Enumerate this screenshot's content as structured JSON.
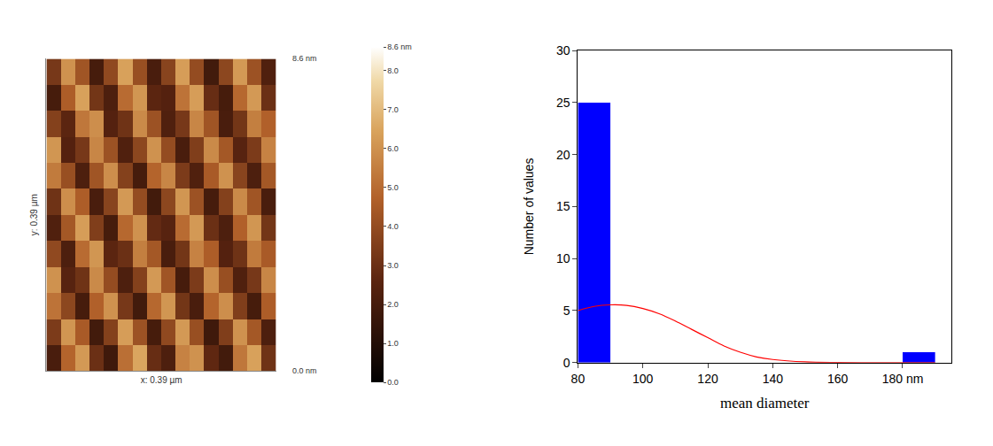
{
  "chart_data": [
    {
      "type": "heatmap",
      "x_label": "x: 0.39 µm",
      "y_label": "y: 0.39 µm",
      "annotations": [
        "8.6 nm",
        "0.0 nm"
      ],
      "tick_labels": false,
      "cells": [
        [
          2.1,
          4.8,
          6.2,
          3.0,
          1.8,
          5.1,
          6.5,
          2.9,
          2.2,
          5.6,
          6.0,
          2.7,
          1.9,
          5.3,
          6.4,
          3.1
        ],
        [
          3.4,
          6.1,
          4.5,
          1.9,
          3.6,
          6.3,
          4.2,
          2.0,
          3.9,
          6.2,
          4.1,
          1.8,
          3.5,
          6.0,
          4.4,
          2.2
        ],
        [
          5.2,
          3.8,
          2.0,
          4.7,
          6.0,
          3.3,
          1.9,
          4.9,
          6.1,
          3.2,
          2.1,
          4.8,
          5.9,
          3.5,
          2.0,
          4.6
        ],
        [
          6.0,
          2.5,
          3.1,
          5.8,
          4.0,
          2.2,
          3.6,
          6.2,
          4.3,
          2.0,
          3.4,
          5.9,
          4.1,
          2.3,
          3.3,
          5.7
        ],
        [
          3.9,
          2.2,
          5.0,
          6.1,
          2.6,
          3.0,
          5.5,
          4.4,
          2.1,
          3.2,
          5.6,
          4.6,
          2.4,
          3.1,
          5.4,
          4.5
        ],
        [
          2.3,
          4.4,
          6.3,
          3.5,
          2.0,
          4.9,
          6.0,
          2.8,
          2.5,
          5.0,
          6.2,
          3.0,
          2.2,
          4.7,
          6.1,
          3.2
        ],
        [
          3.1,
          5.9,
          4.6,
          2.1,
          3.7,
          6.2,
          4.0,
          1.9,
          3.8,
          6.1,
          4.2,
          2.0,
          3.6,
          5.8,
          4.3,
          2.1
        ],
        [
          5.4,
          4.1,
          2.2,
          4.3,
          5.9,
          3.6,
          2.0,
          4.8,
          5.7,
          3.4,
          2.3,
          4.5,
          6.0,
          3.7,
          2.2,
          4.4
        ],
        [
          6.1,
          2.4,
          3.3,
          5.7,
          4.2,
          2.3,
          3.8,
          6.0,
          4.0,
          2.1,
          3.5,
          5.8,
          4.4,
          2.5,
          3.4,
          5.6
        ],
        [
          3.6,
          2.6,
          5.3,
          5.9,
          2.4,
          3.1,
          5.8,
          4.2,
          2.3,
          3.3,
          5.7,
          4.3,
          2.1,
          3.2,
          5.5,
          4.7
        ],
        [
          2.0,
          4.6,
          6.4,
          3.2,
          2.2,
          5.0,
          6.1,
          2.6,
          2.4,
          5.2,
          6.3,
          2.9,
          2.0,
          4.9,
          6.2,
          3.0
        ],
        [
          3.3,
          6.0,
          4.3,
          2.0,
          3.9,
          6.4,
          4.1,
          2.1,
          3.7,
          6.3,
          4.0,
          1.9,
          3.8,
          6.2,
          4.2,
          2.3
        ]
      ],
      "colorbar": {
        "range": [
          0,
          8.6
        ],
        "ticks": [
          {
            "value": 0,
            "label": "0.0"
          },
          {
            "value": 1,
            "label": "1.0"
          },
          {
            "value": 2,
            "label": "2.0"
          },
          {
            "value": 3,
            "label": "3.0"
          },
          {
            "value": 4,
            "label": "4.0"
          },
          {
            "value": 5,
            "label": "5.0"
          },
          {
            "value": 6,
            "label": "6.0"
          },
          {
            "value": 7,
            "label": "7.0"
          },
          {
            "value": 8,
            "label": "8.0"
          },
          {
            "value": 8.6,
            "label": "8.6 nm"
          }
        ]
      }
    },
    {
      "type": "histogram",
      "x_label": "mean diameter",
      "y_label": "Number of values",
      "bins": [
        80,
        90,
        100,
        110,
        120,
        130,
        140,
        150,
        160,
        170,
        180,
        190
      ],
      "values": [
        25,
        0,
        0,
        0,
        0,
        0,
        0,
        0,
        0,
        0,
        1
      ],
      "color": "#0000ff",
      "fit": {
        "x": [
          80,
          85,
          90,
          95,
          100,
          105,
          110,
          115,
          120,
          125,
          130,
          135,
          140,
          150,
          160,
          170,
          180,
          190
        ],
        "values": [
          5.0,
          5.4,
          5.55,
          5.5,
          5.2,
          4.7,
          4.0,
          3.2,
          2.4,
          1.6,
          1.0,
          0.55,
          0.3,
          0.07,
          0.01,
          0,
          0,
          0
        ],
        "color": "#ff0000"
      },
      "xlim": [
        80,
        195
      ],
      "xticks": [
        80,
        100,
        120,
        140,
        160,
        {
          "value": 180,
          "label": "180 nm"
        }
      ],
      "ylim": [
        0,
        30
      ],
      "yticks": [
        0,
        5,
        10,
        15,
        20,
        25,
        30
      ],
      "grid": false
    }
  ]
}
